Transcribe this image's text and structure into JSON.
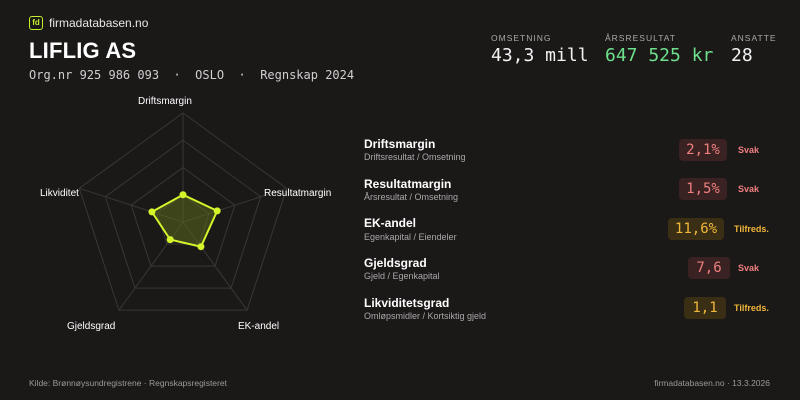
{
  "brand": {
    "logo_text": "fd",
    "name": "firmadatabasen.no"
  },
  "company": {
    "name": "LIFLIG AS",
    "subline": "Org.nr 925 986 093  ·  OSLO  ·  Regnskap 2024"
  },
  "kpis": [
    {
      "label": "OMSETNING",
      "value": "43,3 mill"
    },
    {
      "label": "ÅRSRESULTAT",
      "value": "647 525 kr"
    },
    {
      "label": "ANSATTE",
      "value": "28"
    }
  ],
  "radar": {
    "axes": [
      "Driftsmargin",
      "Resultatmargin",
      "EK-andel",
      "Gjeldsgrad",
      "Likviditet"
    ],
    "values": [
      0.25,
      0.33,
      0.28,
      0.2,
      0.3
    ],
    "colors": {
      "point": "#d4f52a",
      "grid": "#3a3636",
      "fill": "#5b6a1e"
    }
  },
  "metrics": [
    {
      "name": "Driftsmargin",
      "formula": "Driftsresultat / Omsetning",
      "value": "2,1%",
      "status": "Svak",
      "level": "weak"
    },
    {
      "name": "Resultatmargin",
      "formula": "Årsresultat / Omsetning",
      "value": "1,5%",
      "status": "Svak",
      "level": "weak"
    },
    {
      "name": "EK-andel",
      "formula": "Egenkapital / Eiendeler",
      "value": "11,6%",
      "status": "Tilfreds.",
      "level": "ok"
    },
    {
      "name": "Gjeldsgrad",
      "formula": "Gjeld / Egenkapital",
      "value": "7,6",
      "status": "Svak",
      "level": "weak"
    },
    {
      "name": "Likviditetsgrad",
      "formula": "Omløpsmidler / Kortsiktig gjeld",
      "value": "1,1",
      "status": "Tilfreds.",
      "level": "ok"
    }
  ],
  "footer": {
    "source": "Kilde: Brønnøysundregistrene · Regnskapsregisteret",
    "site_date": "firmadatabasen.no · 13.3.2026"
  },
  "colors": {
    "accent": "#c5f02c",
    "positive": "#6ee08b",
    "weak": "#ef7f7f",
    "ok": "#f1b73a"
  }
}
